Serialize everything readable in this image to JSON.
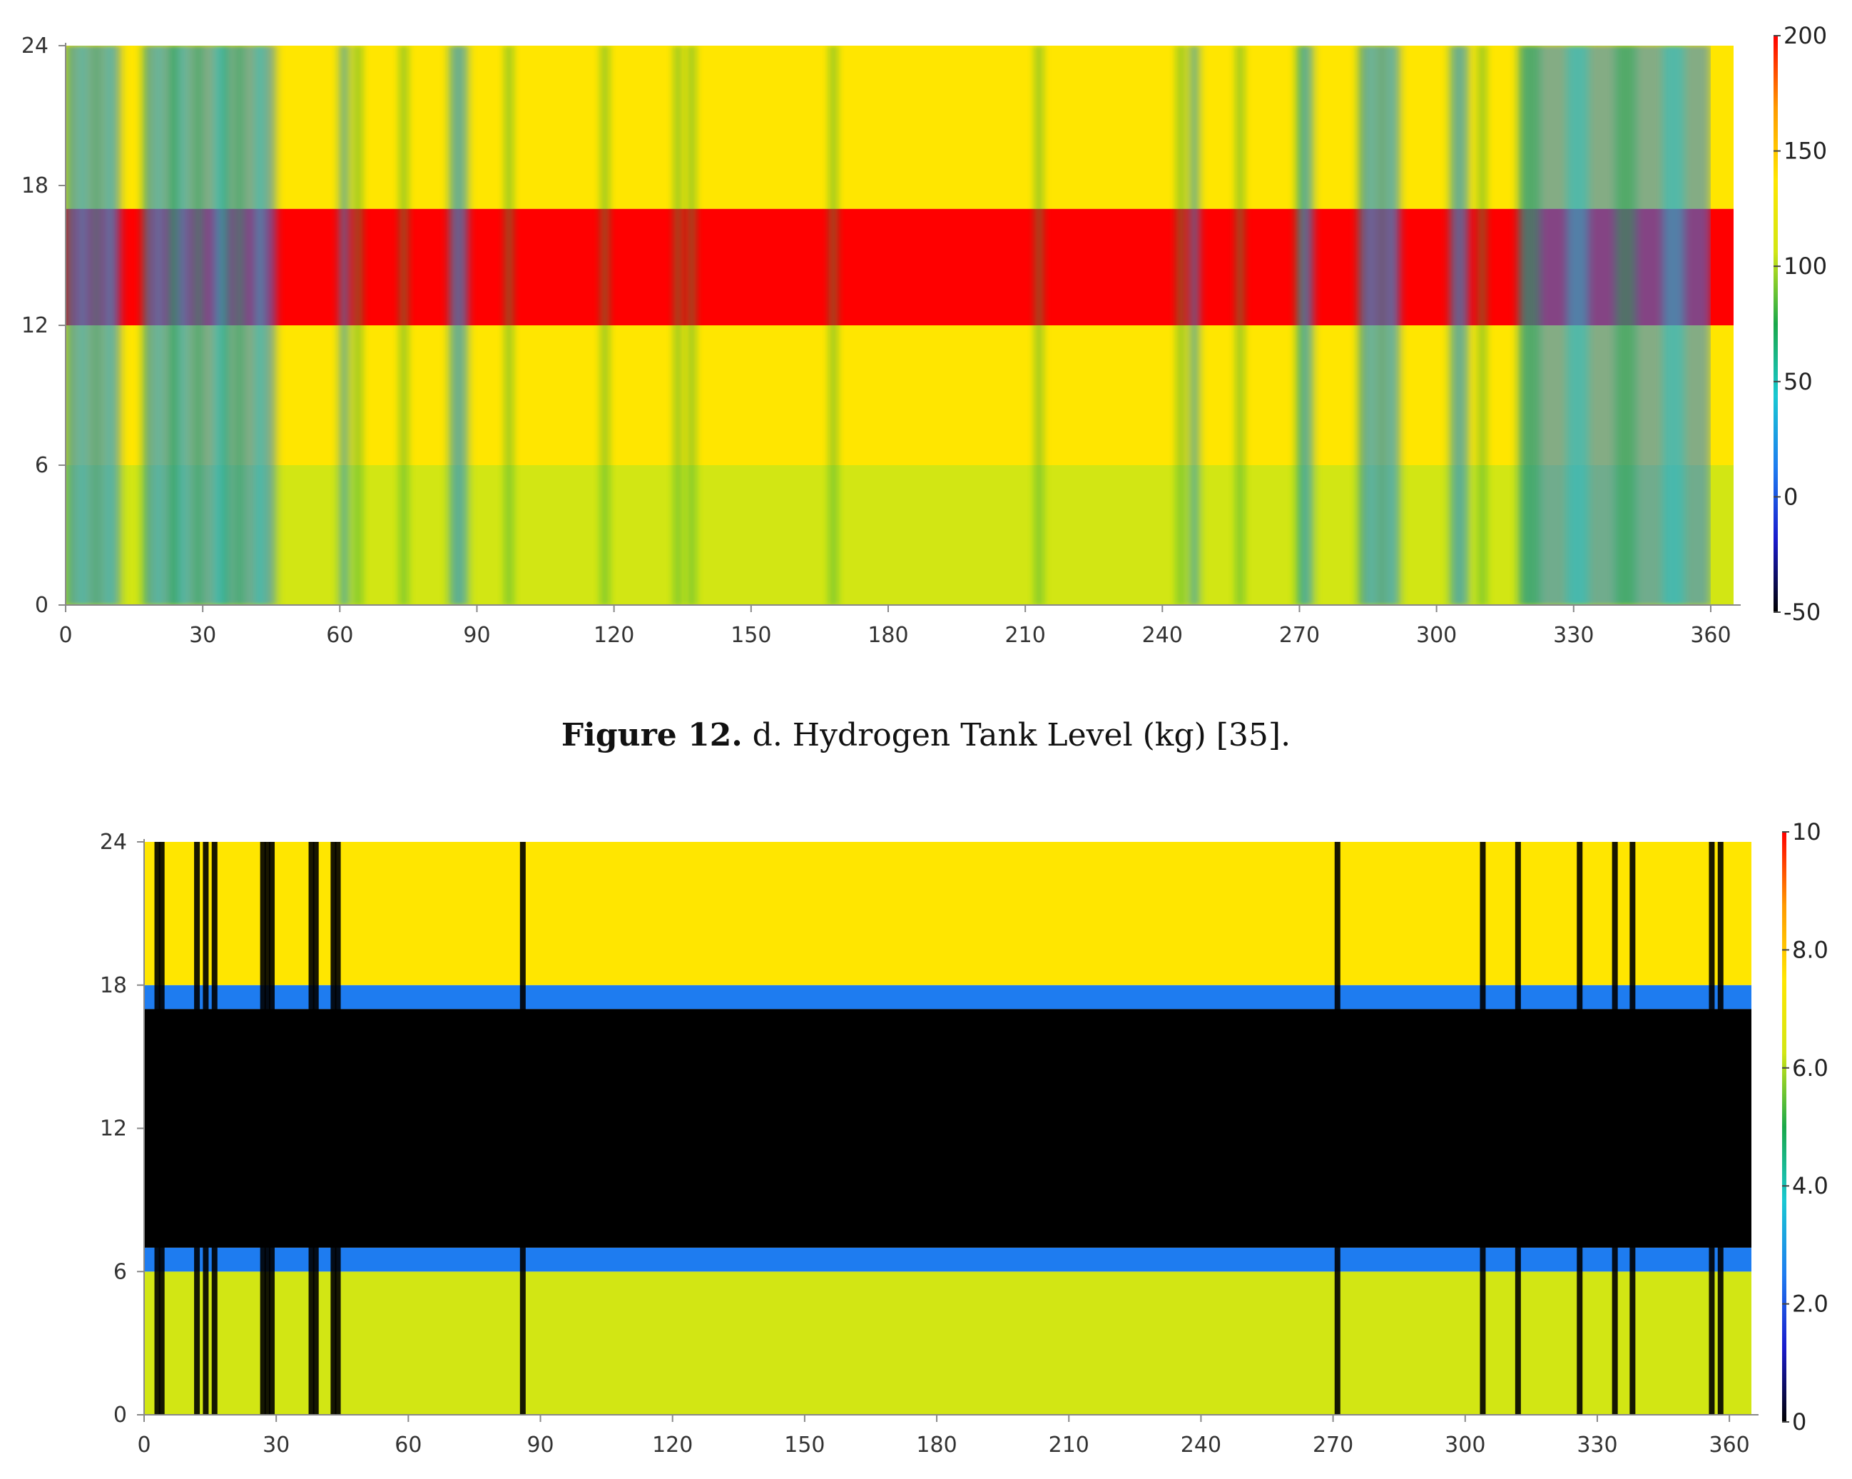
{
  "caption": {
    "figure": "Figure 12.",
    "text": "d. Hydrogen Tank Level (kg) [35]."
  },
  "chart_data": [
    {
      "type": "heatmap",
      "title": "",
      "xlabel": "",
      "ylabel": "",
      "xlim": [
        0,
        365
      ],
      "ylim": [
        0,
        24
      ],
      "xticks": [
        "0",
        "30",
        "60",
        "90",
        "120",
        "150",
        "180",
        "210",
        "240",
        "270",
        "300",
        "330",
        "360"
      ],
      "yticks": [
        "0",
        "6",
        "12",
        "18",
        "24"
      ],
      "colorbar": {
        "min": -50,
        "max": 200,
        "ticks": [
          "200",
          "150",
          "100",
          "50",
          "0",
          "-50"
        ]
      },
      "colormap": [
        "#000000",
        "#1a1acc",
        "#1e7cf0",
        "#19c8d2",
        "#1aa84a",
        "#d2e614",
        "#ffe600",
        "#ff9a00",
        "#ff0000"
      ],
      "bands": [
        {
          "hours": [
            0,
            6
          ],
          "value": 118
        },
        {
          "hours": [
            6,
            12
          ],
          "value": 130
        },
        {
          "hours": [
            12,
            17
          ],
          "value": 185
        },
        {
          "hours": [
            17,
            24
          ],
          "value": 150
        }
      ],
      "low_day_ranges": [
        [
          0,
          12
        ],
        [
          17,
          28
        ],
        [
          28,
          46
        ],
        [
          60,
          62
        ],
        [
          84,
          88
        ],
        [
          246,
          248
        ],
        [
          270,
          273
        ],
        [
          283,
          292
        ],
        [
          303,
          307
        ],
        [
          318,
          360
        ]
      ],
      "green_day_lines": [
        24,
        35,
        64,
        74,
        97,
        118,
        134,
        137,
        168,
        213,
        244,
        257,
        270,
        310
      ]
    },
    {
      "type": "heatmap",
      "title": "",
      "xlabel": "",
      "ylabel": "",
      "xlim": [
        0,
        365
      ],
      "ylim": [
        0,
        24
      ],
      "xticks": [
        "0",
        "30",
        "60",
        "90",
        "120",
        "150",
        "180",
        "210",
        "240",
        "270",
        "300",
        "330",
        "360"
      ],
      "yticks": [
        "0",
        "6",
        "12",
        "18",
        "24"
      ],
      "colorbar": {
        "min": 0,
        "max": 10,
        "ticks": [
          "10",
          "8.0",
          "6.0",
          "4.0",
          "2.0",
          "0"
        ]
      },
      "colormap": [
        "#000000",
        "#1a1acc",
        "#1e7cf0",
        "#19c8d2",
        "#1aa84a",
        "#d2e614",
        "#ffe600",
        "#ff9a00",
        "#ff0000"
      ],
      "bands": [
        {
          "hours": [
            0,
            6
          ],
          "value": 5.8
        },
        {
          "hours": [
            6,
            7
          ],
          "value": 3.0
        },
        {
          "hours": [
            7,
            17
          ],
          "value": 0
        },
        {
          "hours": [
            17,
            18
          ],
          "value": 2.4
        },
        {
          "hours": [
            18,
            24
          ],
          "value": 7.6
        }
      ],
      "black_day_lines": [
        3,
        4,
        12,
        14,
        16,
        27,
        28,
        29,
        38,
        39,
        43,
        44,
        86,
        271,
        304,
        312,
        326,
        334,
        338,
        356,
        358
      ]
    }
  ]
}
